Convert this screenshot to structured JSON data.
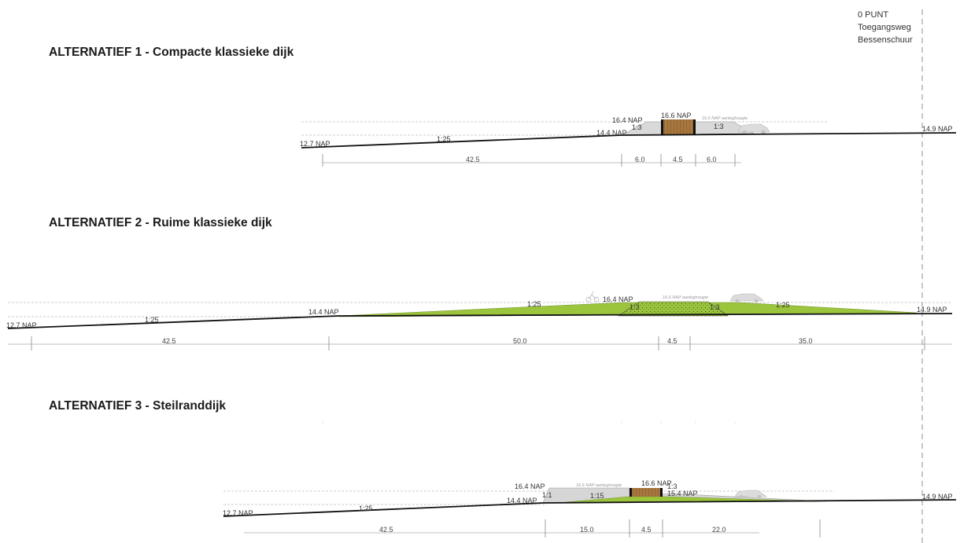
{
  "zero_point": {
    "lines": [
      "0 PUNT",
      "Toegangsweg",
      "Bessenschuur"
    ]
  },
  "alternatives": [
    {
      "title": "ALTERNATIEF 1 - Compacte klassieke dijk",
      "labels": {
        "left_level": "12.7 NAP",
        "right_level": "14.9 NAP",
        "toe_level": "14.4 NAP",
        "road_level": "16.4 NAP",
        "crest_level": "16.6 NAP",
        "design_height": "16.6 NAP aanleghoogte",
        "slope_long": "1:25",
        "slope_left": "1:3",
        "slope_right": "1:3"
      },
      "dimensions": [
        "42.5",
        "6.0",
        "4.5",
        "6.0"
      ]
    },
    {
      "title": "ALTERNATIEF 2 - Ruime klassieke dijk",
      "labels": {
        "left_level": "12.7 NAP",
        "right_level": "14.9 NAP",
        "toe_level": "14.4 NAP",
        "road_level": "16.4 NAP",
        "design_height": "16.6 NAP aanleghoogte",
        "slope_long": "1:25",
        "slope_mid_left": "1:25",
        "slope_mid_right": "1:25",
        "slope_core_left": "1:3",
        "slope_core_right": "1:3"
      },
      "dimensions": [
        "42.5",
        "50.0",
        "4.5",
        "35.0"
      ]
    },
    {
      "title": "ALTERNATIEF 3 - Steilranddijk",
      "labels": {
        "left_level": "12.7 NAP",
        "right_level": "14.9 NAP",
        "toe_level": "14.4 NAP",
        "road_level": "16.4 NAP",
        "crest_level": "16.6 NAP",
        "berm_level": "15.4 NAP",
        "design_height": "16.6 NAP aanleghoogte",
        "slope_long": "1:25",
        "slope_steep": "1:1",
        "slope_berm": "1:15",
        "slope_right": "1:3"
      },
      "dimensions": [
        "42.5",
        "15.0",
        "4.5",
        "22.0"
      ]
    }
  ],
  "colors": {
    "grass": "#9bc53d",
    "grey_fill": "#d6d6d6",
    "wood": "#a8773f",
    "ground_line": "#111111",
    "dashed": "#b0b0b0"
  }
}
